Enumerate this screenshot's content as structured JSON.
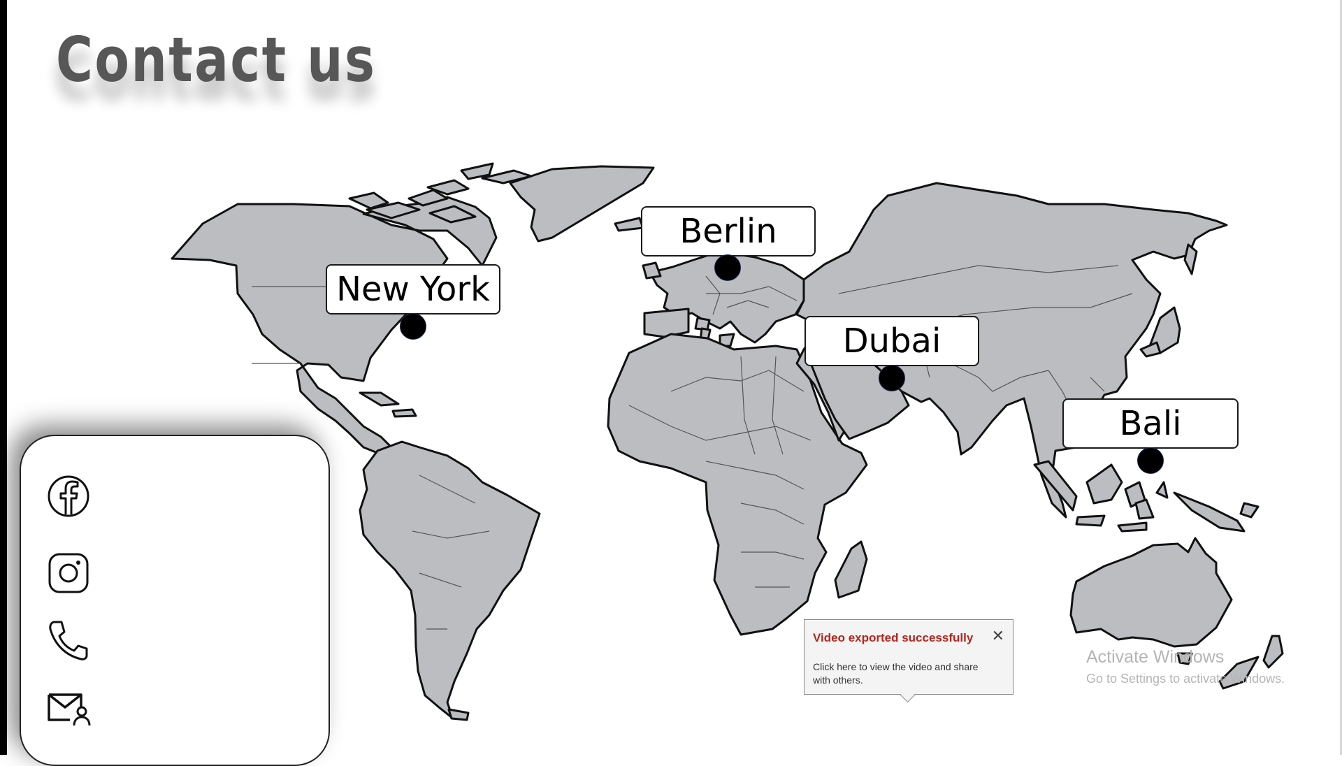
{
  "slide": {
    "title": "Contact us"
  },
  "map": {
    "land_color": "#bcbdc0",
    "border_color": "#111111",
    "locations": [
      {
        "id": "new-york",
        "label": "New York"
      },
      {
        "id": "berlin",
        "label": "Berlin"
      },
      {
        "id": "dubai",
        "label": "Dubai"
      },
      {
        "id": "bali",
        "label": "Bali"
      }
    ]
  },
  "contact": {
    "icons": [
      "facebook-icon",
      "instagram-icon",
      "phone-icon",
      "email-user-icon"
    ]
  },
  "toast": {
    "title": "Video exported successfully",
    "body": "Click here to view the video and share with others.",
    "title_color": "#b3261e"
  },
  "watermark": {
    "line1": "Activate Windows",
    "line2": "Go to Settings to activate Windows."
  }
}
